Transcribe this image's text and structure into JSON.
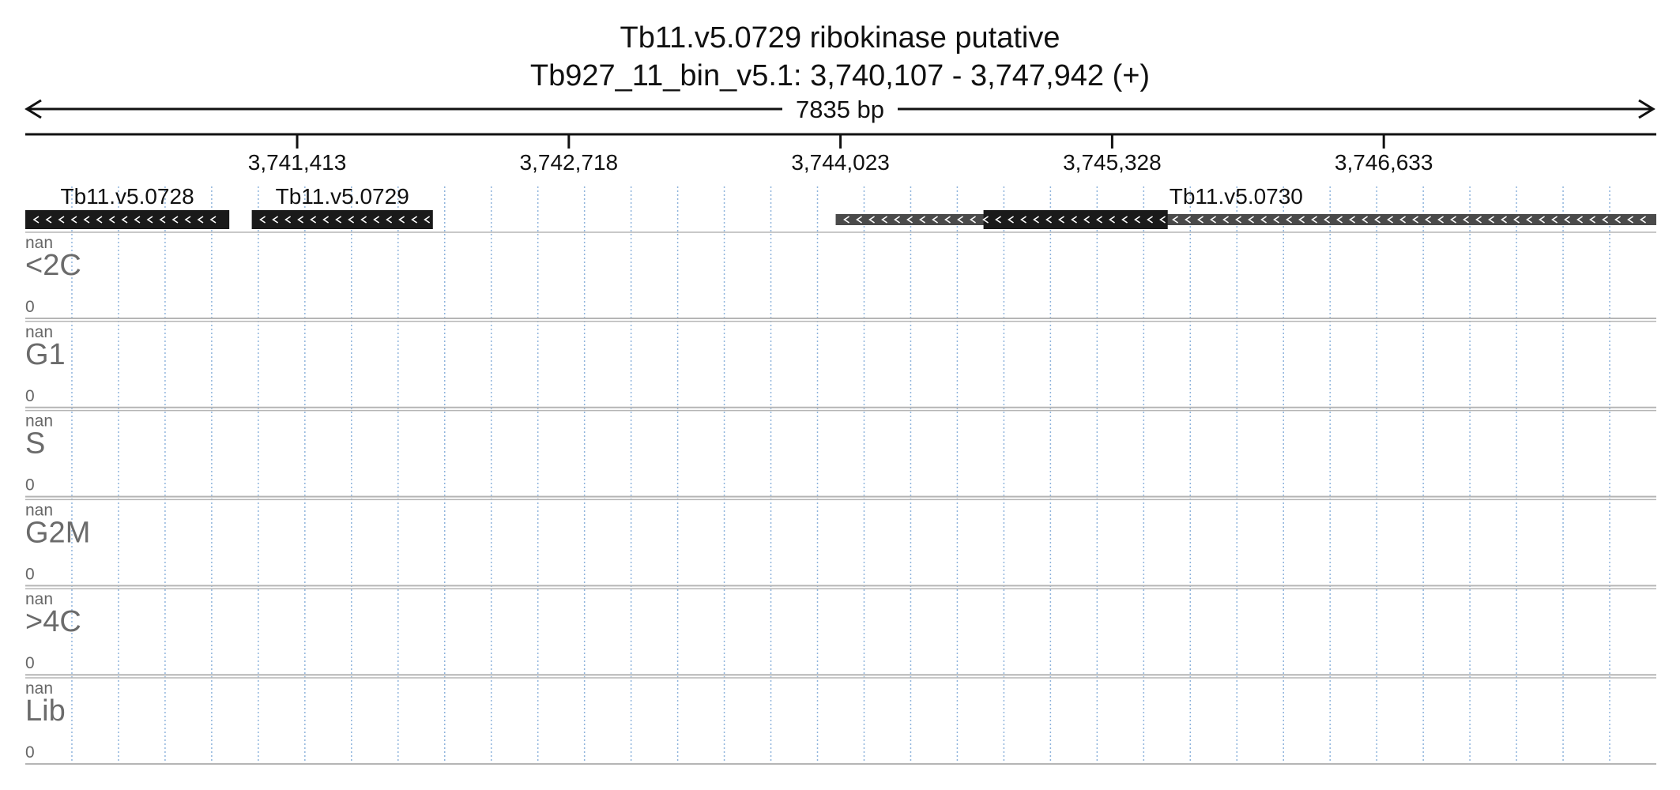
{
  "header": {
    "title": "Tb11.v5.0729  ribokinase  putative",
    "subtitle": "Tb927_11_bin_v5.1: 3,740,107 - 3,747,942 (+)",
    "span_label": "7835 bp"
  },
  "region": {
    "start": 3740107,
    "end": 3747942
  },
  "ruler": {
    "ticks": [
      {
        "pos": 3741413,
        "label": "3,741,413"
      },
      {
        "pos": 3742718,
        "label": "3,742,718"
      },
      {
        "pos": 3744023,
        "label": "3,744,023"
      },
      {
        "pos": 3745328,
        "label": "3,745,328"
      },
      {
        "pos": 3746633,
        "label": "3,746,633"
      }
    ]
  },
  "genes": [
    {
      "id": "Tb11.v5.0728",
      "start": 3740107,
      "end": 3741087,
      "strand": "-",
      "color": "#1a1a1a",
      "cds": [
        3740107,
        3741087
      ]
    },
    {
      "id": "Tb11.v5.0729",
      "start": 3741195,
      "end": 3742065,
      "strand": "-",
      "color": "#1a1a1a",
      "cds": [
        3741195,
        3742065
      ]
    },
    {
      "id": "Tb11.v5.0730",
      "start": 3744000,
      "end": 3747942,
      "strand": "-",
      "color": "#4a4a4a",
      "cds": [
        3744710,
        3745595
      ]
    }
  ],
  "tracks": [
    {
      "name": "<2C",
      "max_label": "nan",
      "min_label": "0"
    },
    {
      "name": "G1",
      "max_label": "nan",
      "min_label": "0"
    },
    {
      "name": "S",
      "max_label": "nan",
      "min_label": "0"
    },
    {
      "name": "G2M",
      "max_label": "nan",
      "min_label": "0"
    },
    {
      "name": ">4C",
      "max_label": "nan",
      "min_label": "0"
    },
    {
      "name": "Lib",
      "max_label": "nan",
      "min_label": "0"
    }
  ],
  "colors": {
    "axis": "#111111",
    "grid": "#8fb4dc",
    "track_border": "#b5b5b5",
    "track_text": "#6b6b6b"
  }
}
